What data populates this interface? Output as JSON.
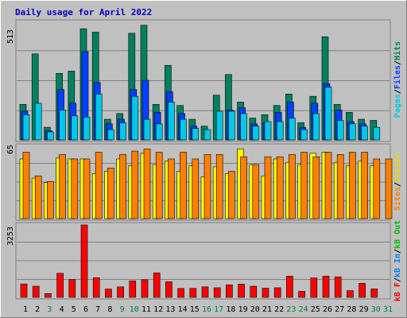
{
  "title": "Daily usage for April 2022",
  "panels": {
    "top": {
      "max_label": "513",
      "legend": [
        {
          "text": "Pages",
          "color": "#00c8e8"
        },
        {
          "text": "/",
          "color": "#000000"
        },
        {
          "text": "Files",
          "color": "#0040ff"
        },
        {
          "text": "/",
          "color": "#000000"
        },
        {
          "text": "Hits",
          "color": "#008060"
        }
      ]
    },
    "middle": {
      "max_label": "65",
      "legend": [
        {
          "text": "Sites",
          "color": "#ff8000"
        },
        {
          "text": "/",
          "color": "#000000"
        },
        {
          "text": "Visits",
          "color": "#e8d800"
        }
      ]
    },
    "bottom": {
      "max_label": "3253",
      "legend": [
        {
          "text": "kB F",
          "color": "#ff0000"
        },
        {
          "text": "/",
          "color": "#000000"
        },
        {
          "text": "kB In",
          "color": "#0080ff"
        },
        {
          "text": "/",
          "color": "#000000"
        },
        {
          "text": "kB Out",
          "color": "#00c000"
        }
      ]
    }
  },
  "colors": {
    "hits": "#008060",
    "files": "#0040ff",
    "pages": "#00c8e8",
    "visits": "#ffff00",
    "sites": "#ff8000",
    "kbf": "#ff0000",
    "weekday_label": "#000000",
    "weekend_label": "#008040",
    "title": "#0000c0",
    "plot_bg": "#c0c0c0"
  },
  "chart_data": [
    {
      "type": "bar",
      "categories": [
        "1",
        "2",
        "3",
        "4",
        "5",
        "6",
        "7",
        "8",
        "9",
        "10",
        "11",
        "12",
        "13",
        "14",
        "15",
        "16",
        "17",
        "18",
        "19",
        "20",
        "21",
        "22",
        "23",
        "24",
        "25",
        "26",
        "27",
        "28",
        "29",
        "30",
        "31"
      ],
      "weekend": [
        false,
        false,
        true,
        false,
        false,
        false,
        false,
        false,
        true,
        true,
        false,
        false,
        false,
        false,
        false,
        true,
        true,
        false,
        false,
        false,
        false,
        false,
        true,
        true,
        false,
        false,
        false,
        false,
        false,
        true,
        true
      ],
      "series": [
        {
          "name": "Hits",
          "values": [
            155,
            375,
            55,
            290,
            300,
            485,
            470,
            90,
            115,
            465,
            500,
            155,
            325,
            150,
            90,
            60,
            195,
            285,
            165,
            95,
            110,
            150,
            200,
            75,
            190,
            450,
            155,
            120,
            90,
            85,
            null
          ]
        },
        {
          "name": "Files",
          "values": [
            125,
            null,
            40,
            220,
            160,
            385,
            250,
            70,
            90,
            220,
            260,
            120,
            210,
            115,
            60,
            null,
            null,
            130,
            140,
            70,
            75,
            120,
            165,
            55,
            160,
            245,
            130,
            80,
            70,
            null,
            null
          ]
        },
        {
          "name": "Pages",
          "values": [
            110,
            160,
            35,
            130,
            105,
            100,
            200,
            45,
            75,
            190,
            90,
            70,
            165,
            90,
            50,
            45,
            125,
            125,
            115,
            60,
            80,
            80,
            95,
            45,
            115,
            230,
            85,
            70,
            60,
            55,
            null
          ]
        }
      ],
      "ylim": [
        0,
        513
      ]
    },
    {
      "type": "bar",
      "categories": [
        "1",
        "2",
        "3",
        "4",
        "5",
        "6",
        "7",
        "8",
        "9",
        "10",
        "11",
        "12",
        "13",
        "14",
        "15",
        "16",
        "17",
        "18",
        "19",
        "20",
        "21",
        "22",
        "23",
        "24",
        "25",
        "26",
        "27",
        "28",
        "29",
        "30",
        "31"
      ],
      "series": [
        {
          "name": "Visits",
          "values": [
            53,
            36,
            32,
            54,
            53,
            53,
            40,
            42,
            53,
            47,
            58,
            48,
            51,
            42,
            47,
            37,
            46,
            40,
            62,
            48,
            38,
            53,
            50,
            48,
            58,
            59,
            50,
            47,
            51,
            47,
            null
          ]
        },
        {
          "name": "Sites",
          "values": [
            59,
            38,
            33,
            57,
            53,
            53,
            59,
            45,
            57,
            60,
            62,
            59,
            53,
            59,
            53,
            57,
            57,
            42,
            55,
            48,
            55,
            55,
            57,
            59,
            55,
            59,
            57,
            59,
            59,
            53,
            53
          ]
        }
      ],
      "ylim": [
        0,
        65
      ]
    },
    {
      "type": "bar",
      "categories": [
        "1",
        "2",
        "3",
        "4",
        "5",
        "6",
        "7",
        "8",
        "9",
        "10",
        "11",
        "12",
        "13",
        "14",
        "15",
        "16",
        "17",
        "18",
        "19",
        "20",
        "21",
        "22",
        "23",
        "24",
        "25",
        "26",
        "27",
        "28",
        "29",
        "30",
        "31"
      ],
      "series": [
        {
          "name": "kB F",
          "values": [
            600,
            500,
            170,
            1080,
            800,
            3253,
            880,
            370,
            470,
            740,
            790,
            1100,
            700,
            400,
            400,
            470,
            430,
            560,
            590,
            500,
            410,
            430,
            950,
            270,
            870,
            950,
            920,
            300,
            630,
            380,
            null
          ]
        }
      ],
      "ylim": [
        0,
        3253
      ]
    }
  ]
}
